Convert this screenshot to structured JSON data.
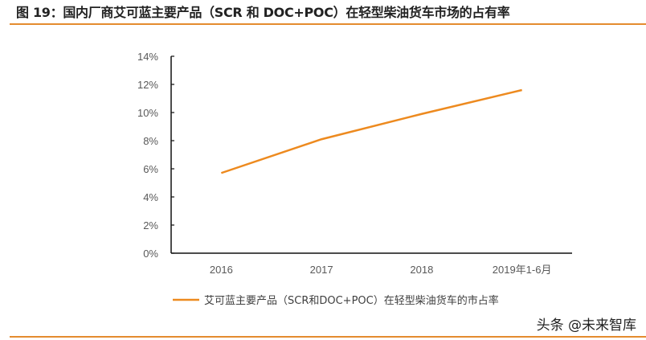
{
  "chart_data": {
    "type": "line",
    "title": "图 19：国内厂商艾可蓝主要产品（SCR 和 DOC+POC）在轻型柴油货车市场的占有率",
    "categories": [
      "2016",
      "2017",
      "2018",
      "2019年1-6月"
    ],
    "series": [
      {
        "name": "艾可蓝主要产品（SCR和DOC+POC）在轻型柴油货车的市占率",
        "values": [
          5.7,
          8.1,
          9.9,
          11.6
        ],
        "color": "#ed8a1f"
      }
    ],
    "yticks": [
      "0%",
      "2%",
      "4%",
      "6%",
      "8%",
      "10%",
      "12%",
      "14%"
    ],
    "ylim": [
      0,
      14
    ],
    "xlabel": "",
    "ylabel": "",
    "grid": false,
    "legend": "bottom-left"
  },
  "watermark": "头条 @未来智库",
  "accent": "#e48c2f"
}
